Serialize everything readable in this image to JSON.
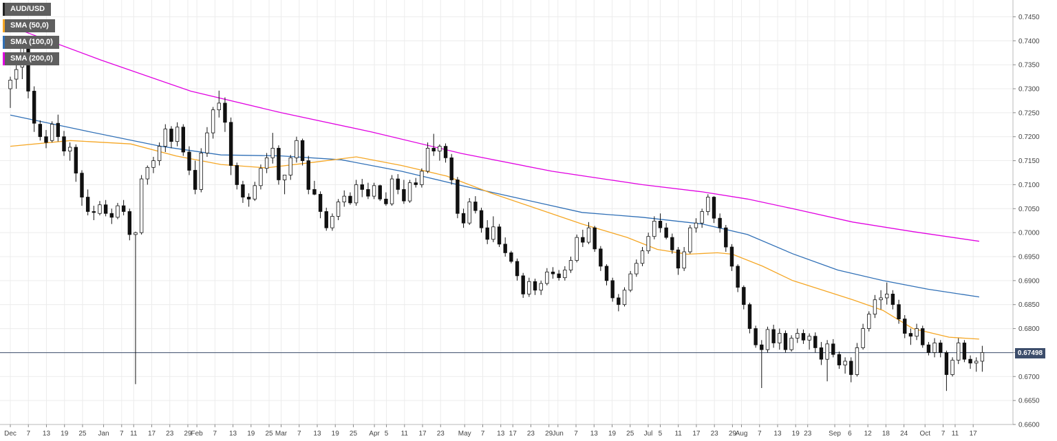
{
  "chart_data": {
    "type": "candlestick",
    "symbol": "AUD/USD",
    "legend": [
      {
        "label": "AUD/USD",
        "color": "#222222"
      },
      {
        "label": "SMA (50,0)",
        "color": "#f5a623"
      },
      {
        "label": "SMA (100,0)",
        "color": "#2f6fb6"
      },
      {
        "label": "SMA (200,0)",
        "color": "#e100e1"
      }
    ],
    "colors": {
      "up_body": "#ffffff",
      "down_body": "#111111",
      "wick": "#111111",
      "grid": "#ececec",
      "price_line": "#3c4d6b"
    },
    "current_price": 0.67498,
    "current_price_label": "0.67498",
    "ylim": [
      0.66,
      0.7485
    ],
    "y_ticks": [
      "0.6600",
      "0.6650",
      "0.6700",
      "0.6750",
      "0.6800",
      "0.6850",
      "0.6900",
      "0.6950",
      "0.7000",
      "0.7050",
      "0.7100",
      "0.7150",
      "0.7200",
      "0.7250",
      "0.7300",
      "0.7350",
      "0.7400",
      "0.7450"
    ],
    "x_ticks": [
      "Dec",
      "7",
      "13",
      "19",
      "25",
      "Jan",
      "7",
      "11",
      "17",
      "23",
      "29",
      "Feb",
      "7",
      "13",
      "19",
      "25",
      "Mar",
      "7",
      "13",
      "19",
      "25",
      "Apr",
      "5",
      "11",
      "17",
      "23",
      "May",
      "7",
      "13",
      "17",
      "23",
      "29",
      "Jun",
      "7",
      "13",
      "19",
      "25",
      "Jul",
      "5",
      "11",
      "17",
      "23",
      "29",
      "Aug",
      "7",
      "13",
      "19",
      "23",
      "Sep",
      "6",
      "12",
      "18",
      "24",
      "Oct",
      "7",
      "11",
      "17"
    ],
    "x_tick_days": [
      0,
      6,
      12,
      18,
      24,
      31,
      37,
      41,
      47,
      53,
      59,
      62,
      68,
      74,
      80,
      86,
      90,
      96,
      102,
      108,
      114,
      121,
      125,
      131,
      137,
      143,
      151,
      157,
      163,
      167,
      173,
      179,
      182,
      188,
      194,
      200,
      206,
      212,
      216,
      222,
      228,
      234,
      240,
      243,
      249,
      255,
      261,
      265,
      274,
      279,
      285,
      291,
      297,
      304,
      310,
      314,
      320
    ],
    "candles_start": "Dec 1",
    "candles": [
      [
        0.73,
        0.7325,
        0.726,
        0.7318
      ],
      [
        0.732,
        0.735,
        0.73,
        0.734
      ],
      [
        0.7345,
        0.7392,
        0.732,
        0.7385
      ],
      [
        0.7385,
        0.739,
        0.728,
        0.7295
      ],
      [
        0.7295,
        0.7305,
        0.721,
        0.7228
      ],
      [
        0.7226,
        0.7234,
        0.7192,
        0.72
      ],
      [
        0.72,
        0.7214,
        0.7176,
        0.7188
      ],
      [
        0.7192,
        0.7232,
        0.7188,
        0.7226
      ],
      [
        0.7228,
        0.7246,
        0.719,
        0.72
      ],
      [
        0.72,
        0.7212,
        0.716,
        0.717
      ],
      [
        0.717,
        0.7188,
        0.715,
        0.7178
      ],
      [
        0.7178,
        0.7184,
        0.7106,
        0.7124
      ],
      [
        0.7124,
        0.713,
        0.7056,
        0.7074
      ],
      [
        0.7074,
        0.709,
        0.7036,
        0.7044
      ],
      [
        0.7044,
        0.7056,
        0.7026,
        0.7042
      ],
      [
        0.704,
        0.7066,
        0.7036,
        0.7058
      ],
      [
        0.7058,
        0.7068,
        0.7034,
        0.704
      ],
      [
        0.704,
        0.705,
        0.7018,
        0.7032
      ],
      [
        0.7032,
        0.7062,
        0.7028,
        0.7056
      ],
      [
        0.7056,
        0.7068,
        0.7036,
        0.7044
      ],
      [
        0.7044,
        0.705,
        0.6984,
        0.6996
      ],
      [
        0.6996,
        0.7002,
        0.6684,
        0.7
      ],
      [
        0.7,
        0.712,
        0.6996,
        0.7112
      ],
      [
        0.7112,
        0.714,
        0.71,
        0.7136
      ],
      [
        0.7136,
        0.7158,
        0.7124,
        0.715
      ],
      [
        0.715,
        0.7188,
        0.714,
        0.718
      ],
      [
        0.718,
        0.7226,
        0.7168,
        0.7216
      ],
      [
        0.7216,
        0.7222,
        0.7176,
        0.719
      ],
      [
        0.719,
        0.723,
        0.718,
        0.722
      ],
      [
        0.722,
        0.7226,
        0.716,
        0.7168
      ],
      [
        0.7168,
        0.718,
        0.712,
        0.713
      ],
      [
        0.713,
        0.715,
        0.708,
        0.709
      ],
      [
        0.709,
        0.7176,
        0.7084,
        0.7166
      ],
      [
        0.7166,
        0.722,
        0.7158,
        0.7208
      ],
      [
        0.7208,
        0.7262,
        0.7196,
        0.7256
      ],
      [
        0.7256,
        0.7296,
        0.724,
        0.727
      ],
      [
        0.727,
        0.7282,
        0.721,
        0.723
      ],
      [
        0.723,
        0.724,
        0.712,
        0.714
      ],
      [
        0.714,
        0.7146,
        0.709,
        0.71
      ],
      [
        0.71,
        0.7108,
        0.7062,
        0.7074
      ],
      [
        0.7074,
        0.7082,
        0.7054,
        0.707
      ],
      [
        0.707,
        0.7106,
        0.7066,
        0.7098
      ],
      [
        0.7098,
        0.7142,
        0.709,
        0.7134
      ],
      [
        0.7134,
        0.7166,
        0.7124,
        0.7156
      ],
      [
        0.7156,
        0.7208,
        0.7144,
        0.7176
      ],
      [
        0.7176,
        0.7182,
        0.71,
        0.711
      ],
      [
        0.711,
        0.712,
        0.708,
        0.712
      ],
      [
        0.712,
        0.7162,
        0.711,
        0.7156
      ],
      [
        0.7156,
        0.72,
        0.7146,
        0.7192
      ],
      [
        0.7192,
        0.7196,
        0.714,
        0.715
      ],
      [
        0.715,
        0.716,
        0.708,
        0.709
      ],
      [
        0.709,
        0.7108,
        0.7078,
        0.708
      ],
      [
        0.708,
        0.7086,
        0.703,
        0.7044
      ],
      [
        0.7044,
        0.7052,
        0.7004,
        0.701
      ],
      [
        0.701,
        0.704,
        0.7004,
        0.7034
      ],
      [
        0.7034,
        0.707,
        0.7026,
        0.7064
      ],
      [
        0.7064,
        0.7088,
        0.7054,
        0.7076
      ],
      [
        0.7076,
        0.7084,
        0.7058,
        0.7062
      ],
      [
        0.7062,
        0.711,
        0.7056,
        0.71
      ],
      [
        0.71,
        0.7112,
        0.7074,
        0.709
      ],
      [
        0.709,
        0.7104,
        0.707,
        0.7076
      ],
      [
        0.7076,
        0.7104,
        0.707,
        0.7098
      ],
      [
        0.7098,
        0.71,
        0.7066,
        0.707
      ],
      [
        0.707,
        0.7084,
        0.7056,
        0.706
      ],
      [
        0.706,
        0.712,
        0.7056,
        0.7112
      ],
      [
        0.7112,
        0.7122,
        0.708,
        0.709
      ],
      [
        0.709,
        0.711,
        0.706,
        0.7066
      ],
      [
        0.7066,
        0.711,
        0.7062,
        0.7104
      ],
      [
        0.7104,
        0.7114,
        0.7094,
        0.71
      ],
      [
        0.71,
        0.7134,
        0.7094,
        0.7128
      ],
      [
        0.7128,
        0.7188,
        0.7124,
        0.7176
      ],
      [
        0.7176,
        0.7206,
        0.716,
        0.717
      ],
      [
        0.717,
        0.7184,
        0.715,
        0.718
      ],
      [
        0.718,
        0.7186,
        0.7146,
        0.7156
      ],
      [
        0.7156,
        0.7164,
        0.71,
        0.711
      ],
      [
        0.711,
        0.7116,
        0.703,
        0.704
      ],
      [
        0.704,
        0.705,
        0.701,
        0.702
      ],
      [
        0.702,
        0.7072,
        0.7016,
        0.7064
      ],
      [
        0.7064,
        0.7076,
        0.704,
        0.7046
      ],
      [
        0.7046,
        0.7052,
        0.7,
        0.701
      ],
      [
        0.701,
        0.7026,
        0.6976,
        0.6986
      ],
      [
        0.6986,
        0.7034,
        0.698,
        0.7012
      ],
      [
        0.7012,
        0.7018,
        0.697,
        0.6976
      ],
      [
        0.6976,
        0.699,
        0.695,
        0.6958
      ],
      [
        0.6958,
        0.6962,
        0.6936,
        0.694
      ],
      [
        0.694,
        0.6946,
        0.69,
        0.691
      ],
      [
        0.691,
        0.6916,
        0.6864,
        0.6872
      ],
      [
        0.6872,
        0.6906,
        0.6866,
        0.6898
      ],
      [
        0.6898,
        0.6904,
        0.687,
        0.688
      ],
      [
        0.688,
        0.69,
        0.687,
        0.6894
      ],
      [
        0.6894,
        0.6926,
        0.689,
        0.6918
      ],
      [
        0.6918,
        0.6928,
        0.6904,
        0.6914
      ],
      [
        0.6914,
        0.6922,
        0.69,
        0.6906
      ],
      [
        0.6906,
        0.693,
        0.69,
        0.6922
      ],
      [
        0.6922,
        0.695,
        0.6916,
        0.6942
      ],
      [
        0.6942,
        0.6996,
        0.6938,
        0.699
      ],
      [
        0.699,
        0.7006,
        0.697,
        0.698
      ],
      [
        0.698,
        0.7022,
        0.6976,
        0.701
      ],
      [
        0.701,
        0.7014,
        0.696,
        0.6966
      ],
      [
        0.6966,
        0.6972,
        0.692,
        0.693
      ],
      [
        0.693,
        0.6934,
        0.689,
        0.69
      ],
      [
        0.69,
        0.6906,
        0.6856,
        0.6864
      ],
      [
        0.6864,
        0.6872,
        0.6836,
        0.685
      ],
      [
        0.685,
        0.6886,
        0.6846,
        0.688
      ],
      [
        0.688,
        0.692,
        0.6876,
        0.6914
      ],
      [
        0.6914,
        0.6944,
        0.6908,
        0.6936
      ],
      [
        0.6936,
        0.697,
        0.693,
        0.6962
      ],
      [
        0.6962,
        0.7,
        0.6956,
        0.6992
      ],
      [
        0.6992,
        0.7034,
        0.6986,
        0.7024
      ],
      [
        0.7024,
        0.704,
        0.7,
        0.701
      ],
      [
        0.701,
        0.702,
        0.6986,
        0.699
      ],
      [
        0.699,
        0.6998,
        0.6956,
        0.6964
      ],
      [
        0.6964,
        0.697,
        0.6912,
        0.6926
      ],
      [
        0.6926,
        0.697,
        0.692,
        0.696
      ],
      [
        0.696,
        0.7016,
        0.6956,
        0.701
      ],
      [
        0.701,
        0.703,
        0.7,
        0.702
      ],
      [
        0.702,
        0.705,
        0.701,
        0.7044
      ],
      [
        0.7044,
        0.708,
        0.7036,
        0.7074
      ],
      [
        0.7074,
        0.7076,
        0.702,
        0.703
      ],
      [
        0.703,
        0.704,
        0.7,
        0.701
      ],
      [
        0.701,
        0.7016,
        0.696,
        0.697
      ],
      [
        0.697,
        0.6976,
        0.692,
        0.693
      ],
      [
        0.693,
        0.6934,
        0.6876,
        0.6886
      ],
      [
        0.6886,
        0.689,
        0.684,
        0.685
      ],
      [
        0.685,
        0.6854,
        0.679,
        0.68
      ],
      [
        0.68,
        0.6806,
        0.676,
        0.6766
      ],
      [
        0.6766,
        0.6776,
        0.6676,
        0.6756
      ],
      [
        0.6756,
        0.6804,
        0.675,
        0.6798
      ],
      [
        0.6798,
        0.6808,
        0.676,
        0.677
      ],
      [
        0.677,
        0.68,
        0.6756,
        0.679
      ],
      [
        0.679,
        0.6796,
        0.675,
        0.6756
      ],
      [
        0.6756,
        0.6786,
        0.6752,
        0.678
      ],
      [
        0.678,
        0.68,
        0.677,
        0.679
      ],
      [
        0.679,
        0.6798,
        0.6768,
        0.6776
      ],
      [
        0.6776,
        0.679,
        0.6756,
        0.6784
      ],
      [
        0.6784,
        0.6792,
        0.675,
        0.676
      ],
      [
        0.676,
        0.6772,
        0.6724,
        0.6736
      ],
      [
        0.6736,
        0.6776,
        0.669,
        0.6768
      ],
      [
        0.6768,
        0.6778,
        0.674,
        0.6746
      ],
      [
        0.6746,
        0.6752,
        0.6716,
        0.6724
      ],
      [
        0.6724,
        0.674,
        0.6706,
        0.6732
      ],
      [
        0.6732,
        0.674,
        0.6688,
        0.6704
      ],
      [
        0.6704,
        0.677,
        0.67,
        0.676
      ],
      [
        0.676,
        0.681,
        0.6756,
        0.68
      ],
      [
        0.68,
        0.6836,
        0.6794,
        0.683
      ],
      [
        0.683,
        0.687,
        0.6822,
        0.686
      ],
      [
        0.686,
        0.688,
        0.684,
        0.6864
      ],
      [
        0.6864,
        0.6896,
        0.685,
        0.6872
      ],
      [
        0.6872,
        0.688,
        0.684,
        0.685
      ],
      [
        0.685,
        0.686,
        0.681,
        0.682
      ],
      [
        0.682,
        0.6828,
        0.678,
        0.679
      ],
      [
        0.679,
        0.68,
        0.6766,
        0.6784
      ],
      [
        0.6784,
        0.681,
        0.6776,
        0.68
      ],
      [
        0.68,
        0.6806,
        0.676,
        0.6766
      ],
      [
        0.6766,
        0.6772,
        0.6744,
        0.675
      ],
      [
        0.675,
        0.678,
        0.674,
        0.677
      ],
      [
        0.677,
        0.6776,
        0.674,
        0.675
      ],
      [
        0.675,
        0.6754,
        0.667,
        0.6704
      ],
      [
        0.6704,
        0.674,
        0.67,
        0.6734
      ],
      [
        0.6734,
        0.678,
        0.6726,
        0.677
      ],
      [
        0.677,
        0.6776,
        0.673,
        0.6736
      ],
      [
        0.6736,
        0.6744,
        0.6716,
        0.6728
      ],
      [
        0.6728,
        0.674,
        0.671,
        0.6732
      ],
      [
        0.6732,
        0.6764,
        0.671,
        0.675
      ]
    ],
    "sma50": [
      [
        0,
        0.718
      ],
      [
        20,
        0.7192
      ],
      [
        40,
        0.7185
      ],
      [
        55,
        0.716
      ],
      [
        70,
        0.7142
      ],
      [
        85,
        0.7135
      ],
      [
        100,
        0.7146
      ],
      [
        115,
        0.7158
      ],
      [
        130,
        0.714
      ],
      [
        145,
        0.7118
      ],
      [
        160,
        0.7082
      ],
      [
        175,
        0.705
      ],
      [
        190,
        0.7018
      ],
      [
        205,
        0.699
      ],
      [
        215,
        0.6965
      ],
      [
        225,
        0.6955
      ],
      [
        235,
        0.6958
      ],
      [
        240,
        0.6955
      ],
      [
        250,
        0.693
      ],
      [
        260,
        0.69
      ],
      [
        270,
        0.688
      ],
      [
        280,
        0.686
      ],
      [
        290,
        0.6838
      ],
      [
        300,
        0.68
      ],
      [
        312,
        0.6782
      ],
      [
        322,
        0.6778
      ]
    ],
    "sma100": [
      [
        0,
        0.7245
      ],
      [
        25,
        0.7212
      ],
      [
        50,
        0.718
      ],
      [
        70,
        0.7162
      ],
      [
        90,
        0.716
      ],
      [
        110,
        0.7152
      ],
      [
        130,
        0.7128
      ],
      [
        150,
        0.7098
      ],
      [
        170,
        0.707
      ],
      [
        190,
        0.7042
      ],
      [
        210,
        0.7032
      ],
      [
        230,
        0.7018
      ],
      [
        245,
        0.6996
      ],
      [
        260,
        0.6956
      ],
      [
        275,
        0.6922
      ],
      [
        290,
        0.69
      ],
      [
        305,
        0.6882
      ],
      [
        322,
        0.6866
      ]
    ],
    "sma200": [
      [
        0,
        0.743
      ],
      [
        30,
        0.736
      ],
      [
        60,
        0.7295
      ],
      [
        90,
        0.725
      ],
      [
        120,
        0.721
      ],
      [
        150,
        0.7165
      ],
      [
        180,
        0.7128
      ],
      [
        210,
        0.71
      ],
      [
        230,
        0.7085
      ],
      [
        245,
        0.707
      ],
      [
        260,
        0.705
      ],
      [
        280,
        0.7022
      ],
      [
        300,
        0.7002
      ],
      [
        322,
        0.6982
      ]
    ]
  }
}
